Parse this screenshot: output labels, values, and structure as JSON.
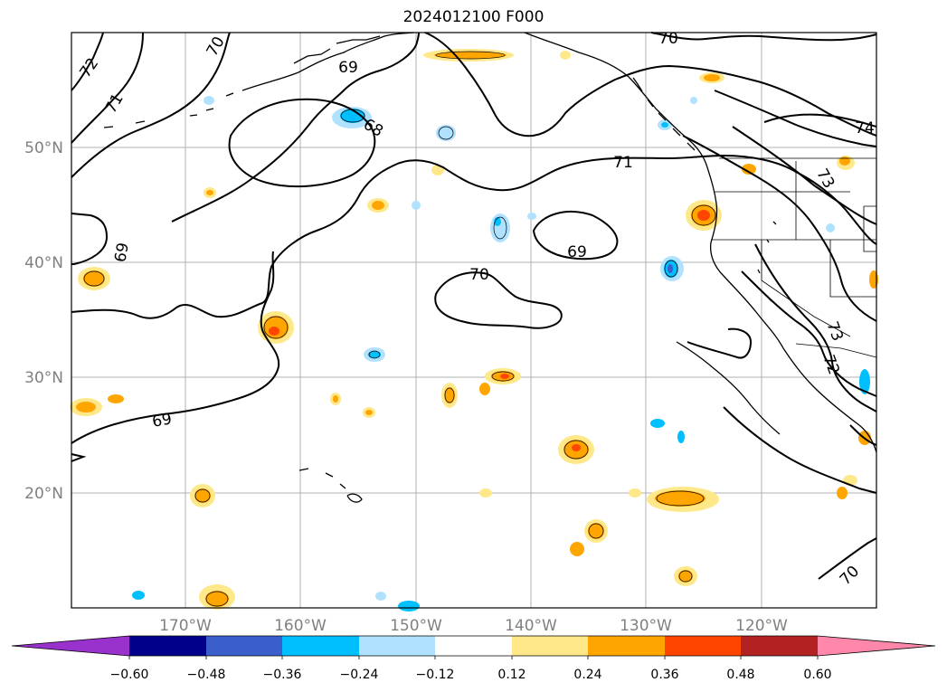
{
  "title": "2024012100 F000",
  "lat_labels": [
    "50°N",
    "40°N",
    "30°N",
    "20°N"
  ],
  "lon_labels": [
    "170°W",
    "160°W",
    "150°W",
    "140°W",
    "130°W",
    "120°W"
  ],
  "contour_labels": [
    "72",
    "71",
    "70",
    "69",
    "68",
    "71",
    "70",
    "74",
    "73",
    "69",
    "70",
    "69",
    "69",
    "73",
    "72",
    "70"
  ],
  "colorbar": {
    "ticks": [
      "−0.60",
      "−0.48",
      "−0.36",
      "−0.24",
      "−0.12",
      "0.12",
      "0.24",
      "0.36",
      "0.48",
      "0.60"
    ],
    "colors": [
      "#9932CC",
      "#00008B",
      "#3A5FCD",
      "#00BFFF",
      "#B0E2FF",
      "#FFFFFF",
      "#FFE88A",
      "#FFA500",
      "#FF4500",
      "#B22222",
      "#FF88AA"
    ]
  }
}
